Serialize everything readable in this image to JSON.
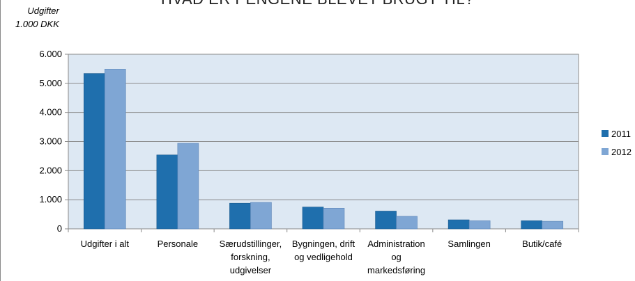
{
  "chart_data": {
    "type": "bar",
    "title": "HVAD ER PENGENE BLEVET BRUGT TIL?",
    "ylabel_lines": [
      "Udgifter",
      "1.000 DKK"
    ],
    "xlabel": "",
    "ylim": [
      0,
      6000
    ],
    "yticks": [
      "0",
      "1.000",
      "2.000",
      "3.000",
      "4.000",
      "5.000",
      "6.000"
    ],
    "grid": true,
    "legend_position": "right",
    "categories": [
      [
        "Udgifter i alt"
      ],
      [
        "Personale"
      ],
      [
        "Særudstillinger,",
        "forskning,",
        "udgivelser"
      ],
      [
        "Bygningen, drift",
        "og vedligehold"
      ],
      [
        "Administration",
        "og",
        "markedsføring"
      ],
      [
        "Samlingen"
      ],
      [
        "Butik/café"
      ]
    ],
    "series": [
      {
        "name": "2011",
        "color": "#1f6fad",
        "values": [
          5340,
          2540,
          880,
          750,
          610,
          310,
          280
        ]
      },
      {
        "name": "2012",
        "color": "#7fa6d4",
        "values": [
          5490,
          2940,
          910,
          710,
          430,
          280,
          260
        ]
      }
    ],
    "plot_background": "#dde8f3"
  }
}
